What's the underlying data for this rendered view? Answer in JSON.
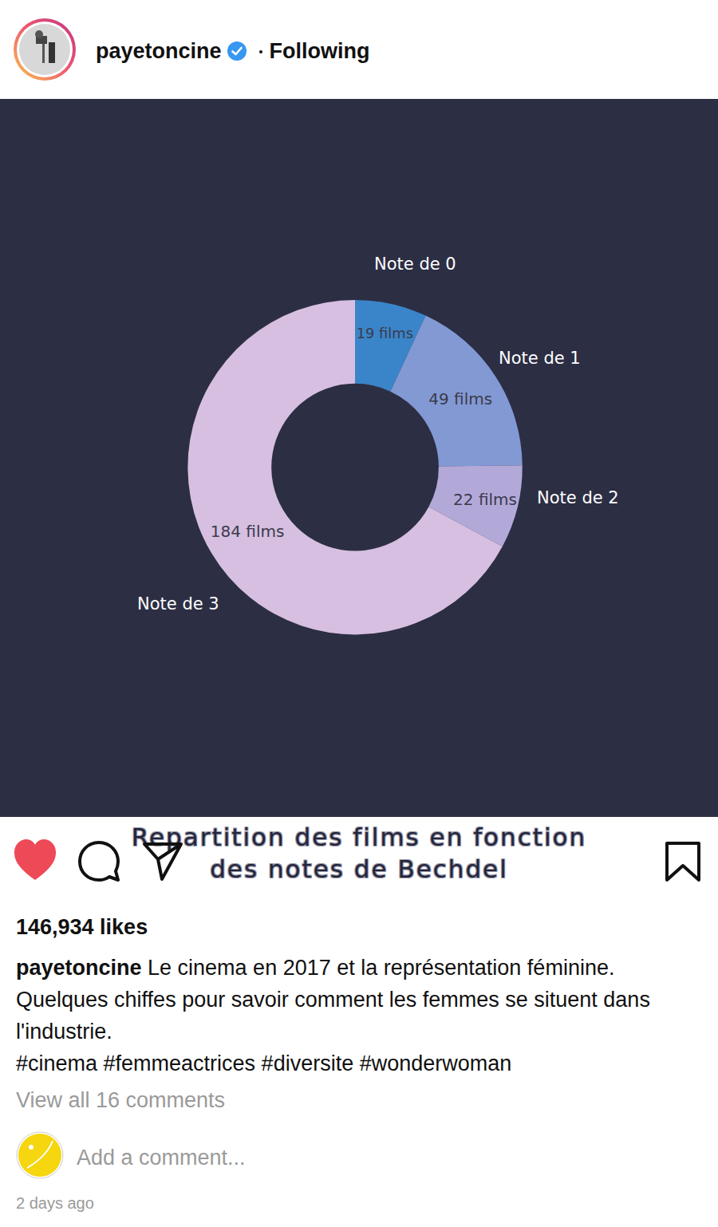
{
  "post": {
    "username": "payetoncine",
    "follow_status": "Following",
    "likes": "146,934 likes",
    "caption": "Le cinema en 2017 et la représentation féminine. Quelques chiffes pour savoir comment les femmes se situent dans l'industrie.",
    "hashtags": [
      "#cinema",
      "#femmeactrices",
      "#diversite",
      "#wonderwoman"
    ],
    "view_comments": "View all 16 comments",
    "comment_placeholder": "Add a comment...",
    "time": "2 days ago"
  },
  "chart_data": {
    "type": "donut",
    "title": "Repartition des films en fonction des notes de Bechdel",
    "categories": [
      "Note de 0",
      "Note de 1",
      "Note de 2",
      "Note de 3"
    ],
    "values": [
      19,
      49,
      22,
      184
    ],
    "value_labels": [
      "19 films",
      "49 films",
      "22 films",
      "184 films"
    ],
    "colors": [
      "#3a85c9",
      "#8299d4",
      "#b3a9d9",
      "#d6bfe0"
    ],
    "data_labels": true
  }
}
